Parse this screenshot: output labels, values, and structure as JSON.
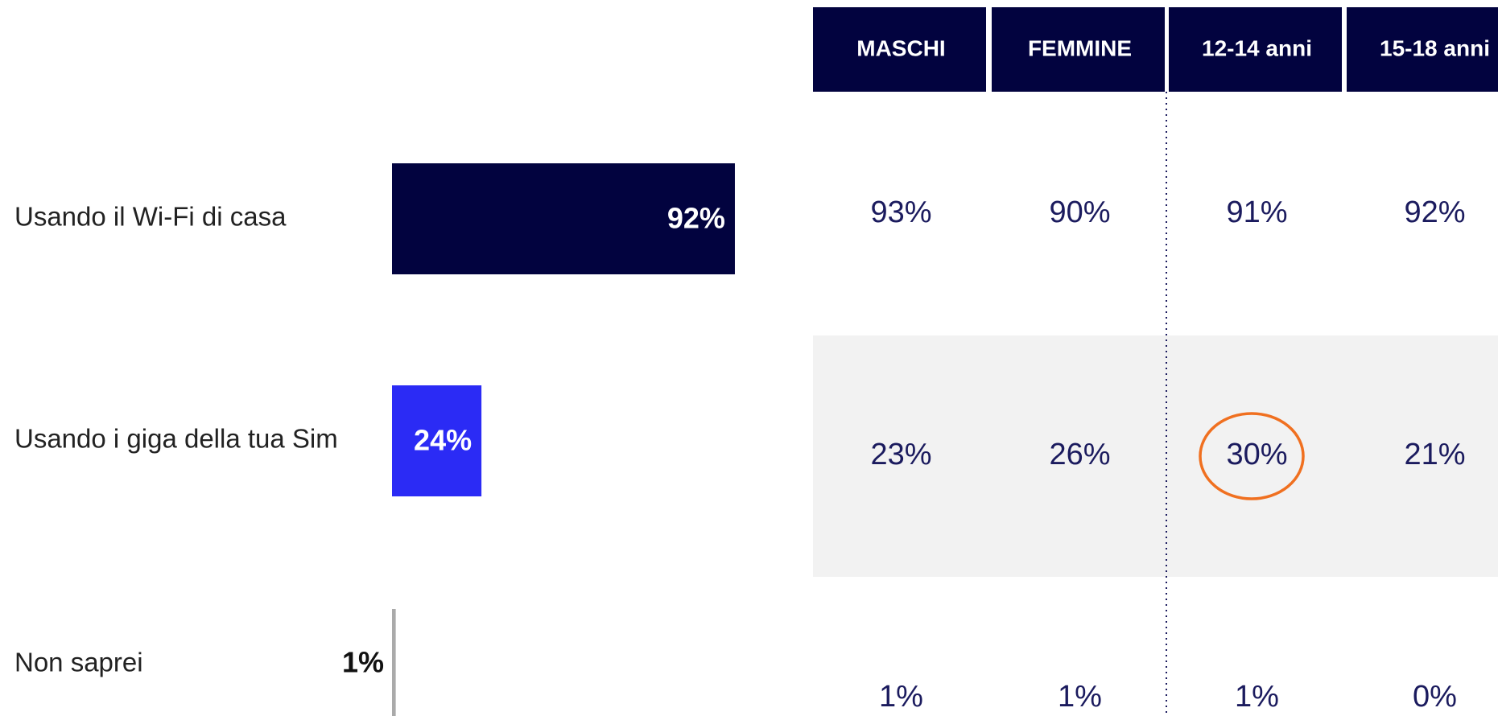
{
  "chart_data": {
    "type": "bar",
    "categories": [
      "Usando il Wi-Fi di casa",
      "Usando i giga della tua Sim",
      "Non saprei"
    ],
    "values": [
      92,
      24,
      1
    ],
    "value_labels": [
      "92%",
      "24%",
      "1%"
    ],
    "colors": [
      "#02033f",
      "#2b2bf5",
      "#aaaaaa"
    ]
  },
  "table": {
    "columns": [
      "MASCHI",
      "FEMMINE",
      "12-14 anni",
      "15-18 anni"
    ],
    "rows": [
      [
        "93%",
        "90%",
        "91%",
        "92%"
      ],
      [
        "23%",
        "26%",
        "30%",
        "21%"
      ],
      [
        "1%",
        "1%",
        "1%",
        "0%"
      ]
    ]
  }
}
